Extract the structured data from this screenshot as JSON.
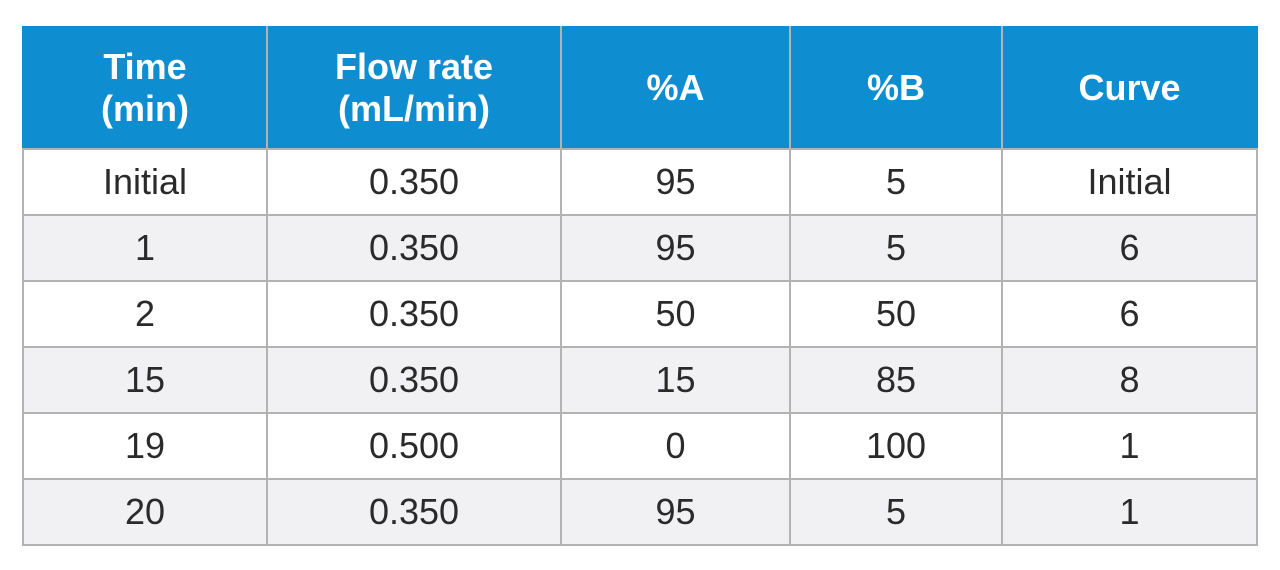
{
  "table": {
    "headers": [
      [
        "Time",
        "(min)"
      ],
      [
        "Flow rate",
        "(mL/min)"
      ],
      [
        "%A"
      ],
      [
        "%B"
      ],
      [
        "Curve"
      ]
    ],
    "rows": [
      [
        "Initial",
        "0.350",
        "95",
        "5",
        "Initial"
      ],
      [
        "1",
        "0.350",
        "95",
        "5",
        "6"
      ],
      [
        "2",
        "0.350",
        "50",
        "50",
        "6"
      ],
      [
        "15",
        "0.350",
        "15",
        "85",
        "8"
      ],
      [
        "19",
        "0.500",
        "0",
        "100",
        "1"
      ],
      [
        "20",
        "0.350",
        "95",
        "5",
        "1"
      ]
    ]
  },
  "colors": {
    "header_bg": "#0f8dd1",
    "header_text": "#ffffff",
    "row_alt_bg": "#f1f1f3",
    "border": "#b3b3b3"
  }
}
